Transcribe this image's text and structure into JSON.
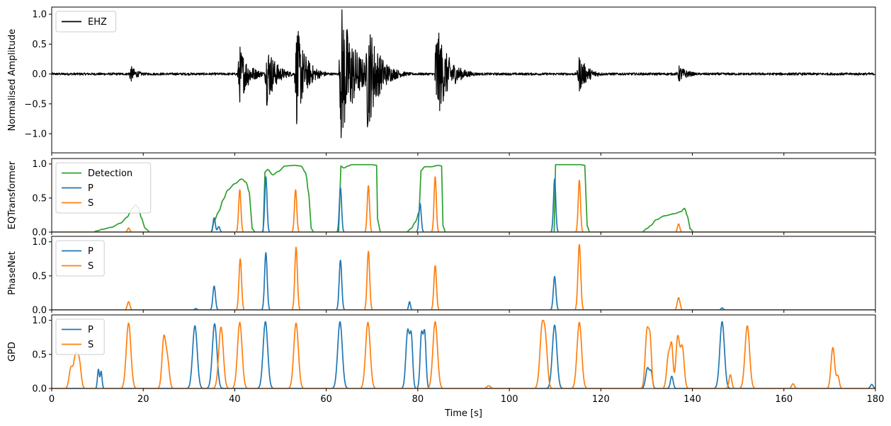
{
  "chart_data": [
    {
      "type": "line",
      "panel": "waveform",
      "ylabel": "Normalised Amplitude",
      "xlim": [
        0,
        180
      ],
      "ylim": [
        -1.32,
        1.12
      ],
      "yticks": [
        -1.0,
        -0.5,
        0.0,
        0.5,
        1.0
      ],
      "yticklabels": [
        "−1.0",
        "−0.5",
        "0.0",
        "0.5",
        "1.0"
      ],
      "legend": "upper-left",
      "series": [
        {
          "name": "EHZ",
          "color": "#000000",
          "noise_floor": 0.02,
          "bursts": [
            {
              "t": 17.2,
              "amp": 0.15,
              "decay": 1.5
            },
            {
              "t": 41.0,
              "amp": 0.52,
              "decay": 2.0
            },
            {
              "t": 47.0,
              "amp": 0.55,
              "decay": 2.0
            },
            {
              "t": 53.5,
              "amp": 0.87,
              "decay": 2.0
            },
            {
              "t": 63.2,
              "amp": 1.25,
              "decay": 3.0
            },
            {
              "t": 69.0,
              "amp": 1.0,
              "decay": 2.5
            },
            {
              "t": 84.0,
              "amp": 0.88,
              "decay": 2.5
            },
            {
              "t": 115.2,
              "amp": 0.32,
              "decay": 2.0
            },
            {
              "t": 137.0,
              "amp": 0.15,
              "decay": 2.0
            }
          ]
        }
      ]
    },
    {
      "type": "line",
      "panel": "EQTransformer",
      "ylabel": "EQTransformer",
      "xlim": [
        0,
        180
      ],
      "ylim": [
        0,
        1.08
      ],
      "yticks": [
        0.0,
        0.5,
        1.0
      ],
      "yticklabels": [
        "0.0",
        "0.5",
        "1.0"
      ],
      "legend": "upper-left",
      "series": [
        {
          "name": "Detection",
          "color": "#2ca02c",
          "points": [
            [
              0,
              0
            ],
            [
              9,
              0
            ],
            [
              10,
              0.02
            ],
            [
              11,
              0.04
            ],
            [
              13,
              0.07
            ],
            [
              15,
              0.13
            ],
            [
              16.5,
              0.22
            ],
            [
              17.5,
              0.34
            ],
            [
              18.3,
              0.4
            ],
            [
              19,
              0.36
            ],
            [
              19.5,
              0.22
            ],
            [
              20.5,
              0.05
            ],
            [
              21.5,
              0
            ],
            [
              35,
              0
            ],
            [
              35.4,
              0.15
            ],
            [
              36.5,
              0.3
            ],
            [
              37.5,
              0.48
            ],
            [
              38.5,
              0.62
            ],
            [
              40,
              0.71
            ],
            [
              41.5,
              0.78
            ],
            [
              42.5,
              0.73
            ],
            [
              43.2,
              0.58
            ],
            [
              43.8,
              0.05
            ],
            [
              44.5,
              0
            ],
            [
              46.2,
              0
            ],
            [
              46.6,
              0.88
            ],
            [
              47.2,
              0.92
            ],
            [
              48.3,
              0.84
            ],
            [
              49.5,
              0.89
            ],
            [
              51,
              0.97
            ],
            [
              53,
              0.98
            ],
            [
              54.5,
              0.97
            ],
            [
              55.5,
              0.87
            ],
            [
              56.2,
              0.55
            ],
            [
              56.7,
              0.06
            ],
            [
              57.2,
              0
            ],
            [
              62.7,
              0
            ],
            [
              63.2,
              0.97
            ],
            [
              63.8,
              0.94
            ],
            [
              64.8,
              0.97
            ],
            [
              65.5,
              0.99
            ],
            [
              70,
              0.99
            ],
            [
              71,
              0.98
            ],
            [
              71.2,
              0.2
            ],
            [
              71.8,
              0
            ],
            [
              77.5,
              0
            ],
            [
              78.5,
              0.05
            ],
            [
              79.5,
              0.15
            ],
            [
              80.3,
              0.3
            ],
            [
              80.7,
              0.9
            ],
            [
              81.5,
              0.96
            ],
            [
              83,
              0.96
            ],
            [
              84.5,
              0.98
            ],
            [
              85.2,
              0.97
            ],
            [
              85.5,
              0.1
            ],
            [
              86,
              0
            ],
            [
              109.8,
              0
            ],
            [
              110.1,
              0.99
            ],
            [
              115.5,
              0.99
            ],
            [
              116.5,
              0.98
            ],
            [
              117,
              0.1
            ],
            [
              117.5,
              0
            ],
            [
              129,
              0
            ],
            [
              130,
              0.05
            ],
            [
              131,
              0.1
            ],
            [
              132,
              0.18
            ],
            [
              134,
              0.24
            ],
            [
              136,
              0.27
            ],
            [
              137.5,
              0.3
            ],
            [
              138.3,
              0.35
            ],
            [
              139,
              0.22
            ],
            [
              139.5,
              0.05
            ],
            [
              140.3,
              0
            ],
            [
              180,
              0
            ]
          ]
        },
        {
          "name": "P",
          "color": "#1f77b4",
          "peaks": [
            [
              35.5,
              0.21,
              0.25
            ],
            [
              36.5,
              0.08,
              0.25
            ],
            [
              46.8,
              0.81,
              0.25
            ],
            [
              63.1,
              0.65,
              0.25
            ],
            [
              80.5,
              0.42,
              0.25
            ],
            [
              109.9,
              0.78,
              0.25
            ]
          ]
        },
        {
          "name": "S",
          "color": "#ff7f0e",
          "peaks": [
            [
              16.8,
              0.06,
              0.25
            ],
            [
              41.1,
              0.62,
              0.25
            ],
            [
              53.3,
              0.62,
              0.25
            ],
            [
              69.2,
              0.68,
              0.25
            ],
            [
              83.8,
              0.81,
              0.25
            ],
            [
              115.3,
              0.76,
              0.25
            ],
            [
              137.0,
              0.12,
              0.25
            ]
          ]
        }
      ]
    },
    {
      "type": "line",
      "panel": "PhaseNet",
      "ylabel": "PhaseNet",
      "xlim": [
        0,
        180
      ],
      "ylim": [
        0,
        1.08
      ],
      "yticks": [
        0.0,
        0.5,
        1.0
      ],
      "yticklabels": [
        "0.0",
        "0.5",
        "1.0"
      ],
      "legend": "upper-left",
      "series": [
        {
          "name": "P",
          "color": "#1f77b4",
          "peaks": [
            [
              31.5,
              0.02,
              0.25
            ],
            [
              35.5,
              0.35,
              0.28
            ],
            [
              46.8,
              0.84,
              0.28
            ],
            [
              63.1,
              0.73,
              0.28
            ],
            [
              78.2,
              0.12,
              0.2
            ],
            [
              109.9,
              0.49,
              0.28
            ],
            [
              146.5,
              0.03,
              0.25
            ]
          ]
        },
        {
          "name": "S",
          "color": "#ff7f0e",
          "peaks": [
            [
              16.8,
              0.12,
              0.28
            ],
            [
              41.2,
              0.75,
              0.28
            ],
            [
              53.4,
              0.92,
              0.28
            ],
            [
              69.2,
              0.86,
              0.28
            ],
            [
              83.8,
              0.65,
              0.28
            ],
            [
              115.3,
              0.96,
              0.3
            ],
            [
              137.0,
              0.18,
              0.3
            ]
          ]
        }
      ]
    },
    {
      "type": "line",
      "panel": "GPD",
      "ylabel": "GPD",
      "xlabel": "Time [s]",
      "xlim": [
        0,
        180
      ],
      "ylim": [
        0,
        1.08
      ],
      "yticks": [
        0.0,
        0.5,
        1.0
      ],
      "yticklabels": [
        "0.0",
        "0.5",
        "1.0"
      ],
      "xticks": [
        0,
        20,
        40,
        60,
        80,
        100,
        120,
        140,
        160,
        180
      ],
      "xticklabels": [
        "0",
        "20",
        "40",
        "60",
        "80",
        "100",
        "120",
        "140",
        "160",
        "180"
      ],
      "legend": "upper-left",
      "series": [
        {
          "name": "P",
          "color": "#1f77b4",
          "peaks": [
            [
              10.2,
              0.28,
              0.2
            ],
            [
              10.8,
              0.25,
              0.2
            ],
            [
              31.3,
              0.92,
              0.5
            ],
            [
              35.6,
              0.95,
              0.5
            ],
            [
              46.7,
              0.98,
              0.5
            ],
            [
              63.0,
              0.98,
              0.5
            ],
            [
              77.8,
              0.85,
              0.4
            ],
            [
              78.6,
              0.7,
              0.3
            ],
            [
              80.8,
              0.78,
              0.3
            ],
            [
              81.5,
              0.8,
              0.3
            ],
            [
              109.9,
              0.93,
              0.5
            ],
            [
              130.2,
              0.3,
              0.4
            ],
            [
              131,
              0.22,
              0.3
            ],
            [
              135.5,
              0.18,
              0.3
            ],
            [
              146.5,
              0.98,
              0.5
            ],
            [
              179.2,
              0.06,
              0.3
            ]
          ]
        },
        {
          "name": "S",
          "color": "#ff7f0e",
          "peaks": [
            [
              4.2,
              0.3,
              0.4
            ],
            [
              5.2,
              0.45,
              0.4
            ],
            [
              6.0,
              0.4,
              0.4
            ],
            [
              16.8,
              0.96,
              0.5
            ],
            [
              24.5,
              0.72,
              0.4
            ],
            [
              25.3,
              0.4,
              0.4
            ],
            [
              37.0,
              0.9,
              0.5
            ],
            [
              41.1,
              0.97,
              0.5
            ],
            [
              53.4,
              0.96,
              0.5
            ],
            [
              69.1,
              0.97,
              0.5
            ],
            [
              83.8,
              0.98,
              0.5
            ],
            [
              95.5,
              0.04,
              0.4
            ],
            [
              107.2,
              0.92,
              0.5
            ],
            [
              108.0,
              0.5,
              0.4
            ],
            [
              115.3,
              0.97,
              0.5
            ],
            [
              130.1,
              0.85,
              0.4
            ],
            [
              130.8,
              0.6,
              0.3
            ],
            [
              134.8,
              0.5,
              0.4
            ],
            [
              135.5,
              0.55,
              0.3
            ],
            [
              136.8,
              0.75,
              0.4
            ],
            [
              137.8,
              0.6,
              0.4
            ],
            [
              148.3,
              0.2,
              0.3
            ],
            [
              152.0,
              0.92,
              0.5
            ],
            [
              162.0,
              0.07,
              0.3
            ],
            [
              170.7,
              0.6,
              0.4
            ],
            [
              171.8,
              0.18,
              0.3
            ]
          ]
        }
      ]
    }
  ]
}
